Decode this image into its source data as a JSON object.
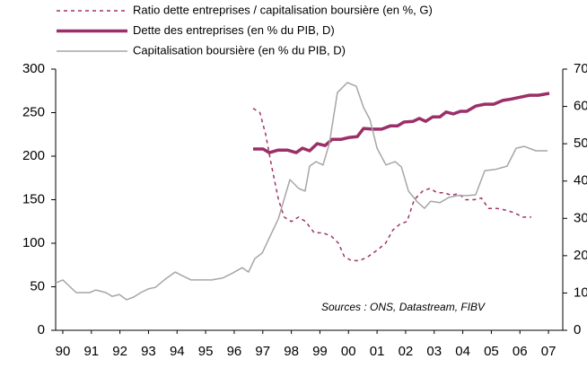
{
  "chart_data": {
    "type": "line",
    "xlim": [
      1989.75,
      2007.5
    ],
    "xticks": [
      {
        "value": 1990,
        "label": "90"
      },
      {
        "value": 1991,
        "label": "91"
      },
      {
        "value": 1992,
        "label": "92"
      },
      {
        "value": 1993,
        "label": "93"
      },
      {
        "value": 1994,
        "label": "94"
      },
      {
        "value": 1995,
        "label": "95"
      },
      {
        "value": 1996,
        "label": "96"
      },
      {
        "value": 1997,
        "label": "97"
      },
      {
        "value": 1998,
        "label": "98"
      },
      {
        "value": 1999,
        "label": "99"
      },
      {
        "value": 2000,
        "label": "00"
      },
      {
        "value": 2001,
        "label": "01"
      },
      {
        "value": 2002,
        "label": "02"
      },
      {
        "value": 2003,
        "label": "03"
      },
      {
        "value": 2004,
        "label": "04"
      },
      {
        "value": 2005,
        "label": "05"
      },
      {
        "value": 2006,
        "label": "06"
      },
      {
        "value": 2007,
        "label": "07"
      }
    ],
    "ylim": [
      0,
      300
    ],
    "yticks": [
      0,
      50,
      100,
      150,
      200,
      250,
      300
    ],
    "y2lim": [
      0,
      70
    ],
    "y2ticks": [
      0,
      10,
      20,
      30,
      40,
      50,
      60,
      70
    ],
    "annotation": "Sources :  ONS, Datastream, FIBV",
    "series": [
      {
        "name": "Ratio dette entreprises / capitalisation boursière (en %, G)",
        "color": "#a0336a",
        "dashed": true,
        "width": 1.5,
        "x": [
          1996.66,
          1996.9,
          1997.1,
          1997.3,
          1997.55,
          1997.75,
          1998.0,
          1998.25,
          1998.5,
          1998.8,
          1999.1,
          1999.4,
          1999.65,
          1999.85,
          2000.1,
          2000.4,
          2000.7,
          2001.0,
          2001.3,
          2001.55,
          2001.8,
          2002.05,
          2002.3,
          2002.6,
          2002.85,
          2003.1,
          2003.35,
          2003.6,
          2003.85,
          2004.1,
          2004.4,
          2004.65,
          2004.9,
          2005.2,
          2005.5,
          2005.8,
          2006.1,
          2006.4
        ],
        "values": [
          255,
          250,
          225,
          190,
          150,
          130,
          125,
          130,
          125,
          112,
          112,
          108,
          100,
          85,
          80,
          80,
          85,
          92,
          100,
          115,
          122,
          125,
          150,
          160,
          163,
          158,
          158,
          155,
          157,
          150,
          150,
          152,
          140,
          140,
          138,
          135,
          130,
          130
        ]
      },
      {
        "name": "Dette des entreprises  (en % du PIB, D)",
        "color": "#9b2f68",
        "width": 3.5,
        "axis": "y2",
        "x": [
          1996.66,
          1997.01,
          1997.23,
          1997.54,
          1997.86,
          1998.17,
          1998.39,
          1998.64,
          1998.9,
          1999.18,
          1999.43,
          1999.75,
          2000.03,
          2000.31,
          2000.53,
          2000.85,
          2001.16,
          2001.47,
          2001.72,
          2001.94,
          2002.26,
          2002.48,
          2002.7,
          2002.95,
          2003.2,
          2003.42,
          2003.67,
          2003.92,
          2004.14,
          2004.45,
          2004.77,
          2005.08,
          2005.4,
          2005.71,
          2006.02,
          2006.34,
          2006.65,
          2007.03
        ],
        "values": [
          48.6,
          48.6,
          47.6,
          48.3,
          48.3,
          47.6,
          48.8,
          48.1,
          50.0,
          49.5,
          51.2,
          51.2,
          51.7,
          51.9,
          54.1,
          53.9,
          53.9,
          54.8,
          54.8,
          55.8,
          56.0,
          56.8,
          56.0,
          57.2,
          57.2,
          58.5,
          58.0,
          58.7,
          58.7,
          60.1,
          60.6,
          60.6,
          61.6,
          62.0,
          62.5,
          63.0,
          63.0,
          63.5
        ]
      },
      {
        "name": "Capitalisation boursière (en % du PIB, D)",
        "color": "#a6a6a6",
        "width": 1.5,
        "axis": "y2",
        "x": [
          1989.75,
          1990.0,
          1990.47,
          1990.94,
          1991.16,
          1991.51,
          1991.73,
          1991.98,
          1992.23,
          1992.48,
          1992.73,
          1992.99,
          1993.24,
          1993.55,
          1993.93,
          1994.24,
          1994.49,
          1995.22,
          1995.59,
          1995.91,
          1996.28,
          1996.5,
          1996.72,
          1996.98,
          1997.23,
          1997.54,
          1997.95,
          1998.26,
          1998.48,
          1998.64,
          1998.86,
          1999.11,
          1999.33,
          1999.61,
          1999.96,
          2000.27,
          2000.53,
          2000.75,
          2001.0,
          2001.31,
          2001.63,
          2001.85,
          2002.1,
          2002.41,
          2002.66,
          2002.88,
          2003.2,
          2003.51,
          2003.82,
          2004.14,
          2004.45,
          2004.77,
          2005.14,
          2005.55,
          2005.87,
          2006.15,
          2006.56,
          2006.97
        ],
        "values": [
          12.7,
          13.5,
          10.1,
          10.1,
          10.8,
          10.1,
          9.1,
          9.6,
          8.2,
          8.9,
          10.1,
          11.1,
          11.5,
          13.5,
          15.6,
          14.4,
          13.5,
          13.5,
          14.0,
          15.2,
          16.8,
          15.6,
          19.2,
          20.7,
          24.8,
          29.8,
          40.4,
          38.0,
          37.3,
          44.0,
          45.2,
          44.3,
          50.0,
          63.7,
          66.4,
          65.4,
          59.7,
          56.5,
          48.8,
          44.3,
          45.2,
          43.8,
          37.3,
          34.4,
          32.7,
          34.6,
          34.2,
          35.6,
          36.1,
          36.1,
          36.3,
          42.8,
          43.1,
          44.0,
          48.8,
          49.3,
          48.1,
          48.1
        ]
      }
    ]
  }
}
